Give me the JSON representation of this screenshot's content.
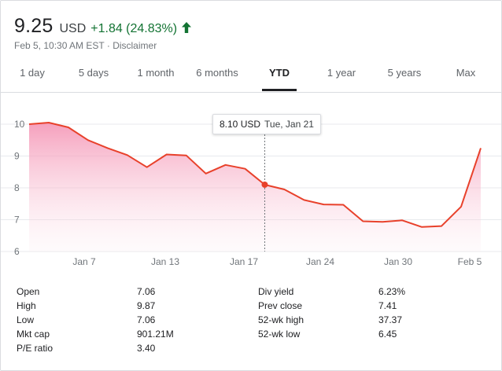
{
  "quote": {
    "price": "9.25",
    "currency": "USD",
    "change": "+1.84 (24.83%)",
    "change_color": "#137333",
    "direction_icon": "arrow-up-icon",
    "timestamp": "Feb 5, 10:30 AM EST",
    "separator": " · ",
    "disclaimer": "Disclaimer"
  },
  "tabs": [
    {
      "label": "1 day"
    },
    {
      "label": "5 days"
    },
    {
      "label": "1 month"
    },
    {
      "label": "6 months"
    },
    {
      "label": "YTD",
      "active": true
    },
    {
      "label": "1 year"
    },
    {
      "label": "5 years"
    },
    {
      "label": "Max"
    }
  ],
  "tooltip": {
    "value": "8.10 USD",
    "date": "Tue, Jan 21"
  },
  "chart_data": {
    "type": "area",
    "line_color": "#e8412b",
    "fill_color": "#f9a7b8",
    "ylim": [
      6,
      10
    ],
    "y_ticks": [
      "10",
      "9",
      "8",
      "7",
      "6"
    ],
    "x_tick_labels": [
      "Jan 7",
      "Jan 13",
      "Jan 17",
      "Jan 24",
      "Jan 30",
      "Feb 5"
    ],
    "grid": true,
    "hover_index": 12,
    "series": [
      {
        "values": [
          10.0,
          10.05,
          9.9,
          9.5,
          9.25,
          9.03,
          8.65,
          9.05,
          9.02,
          8.45,
          8.72,
          8.6,
          8.1,
          7.95,
          7.62,
          7.48,
          7.47,
          6.95,
          6.93,
          6.98,
          6.77,
          6.8,
          7.41,
          9.25
        ]
      }
    ]
  },
  "stats": {
    "left": [
      {
        "label": "Open",
        "value": "7.06"
      },
      {
        "label": "High",
        "value": "9.87"
      },
      {
        "label": "Low",
        "value": "7.06"
      },
      {
        "label": "Mkt cap",
        "value": "901.21M"
      },
      {
        "label": "P/E ratio",
        "value": "3.40"
      }
    ],
    "right": [
      {
        "label": "Div yield",
        "value": "6.23%"
      },
      {
        "label": "Prev close",
        "value": "7.41"
      },
      {
        "label": "52-wk high",
        "value": "37.37"
      },
      {
        "label": "52-wk low",
        "value": "6.45"
      }
    ]
  }
}
